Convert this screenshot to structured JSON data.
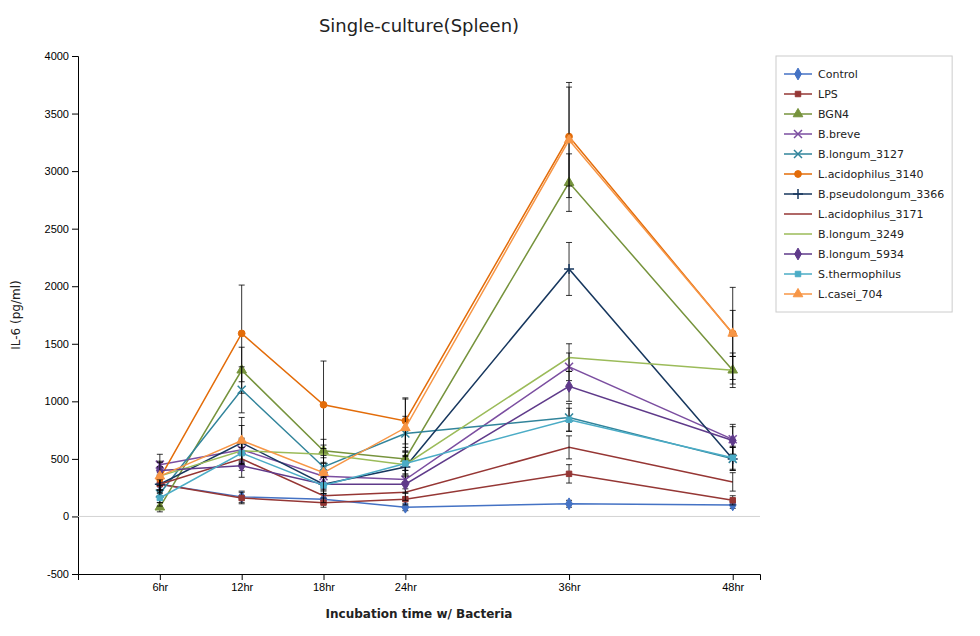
{
  "chart_data": {
    "type": "line",
    "title": "Single-culture(Spleen)",
    "xlabel": "Incubation time w/ Bacteria",
    "ylabel": "IL-6 (pg/ml)",
    "x": [
      6,
      12,
      18,
      24,
      36,
      48
    ],
    "xlim": [
      0,
      50
    ],
    "xticks": [
      {
        "value": 6,
        "label": "6hr"
      },
      {
        "value": 12,
        "label": "12hr"
      },
      {
        "value": 18,
        "label": "18hr"
      },
      {
        "value": 24,
        "label": "24hr"
      },
      {
        "value": 36,
        "label": "36hr"
      },
      {
        "value": 48,
        "label": "48hr"
      }
    ],
    "ylim": [
      -500,
      4000
    ],
    "yticks": [
      -500,
      0,
      500,
      1000,
      1500,
      2000,
      2500,
      3000,
      3500,
      4000
    ],
    "grid": false,
    "legend": "right",
    "series": [
      {
        "name": "Control",
        "color": "#4472C4",
        "marker": "diamond",
        "values": [
          280,
          170,
          150,
          80,
          110,
          100
        ],
        "yerr": [
          80,
          50,
          40,
          30,
          30,
          30
        ]
      },
      {
        "name": "LPS",
        "color": "#953735",
        "marker": "square",
        "values": [
          280,
          160,
          120,
          150,
          370,
          140
        ],
        "yerr": [
          60,
          50,
          40,
          50,
          80,
          40
        ]
      },
      {
        "name": "BGN4",
        "color": "#76933C",
        "marker": "triangle",
        "values": [
          80,
          1270,
          570,
          500,
          2900,
          1270
        ],
        "yerr": [
          40,
          200,
          100,
          100,
          250,
          150
        ]
      },
      {
        "name": "B.breve",
        "color": "#7B4EA0",
        "marker": "x",
        "values": [
          450,
          580,
          350,
          320,
          1300,
          670
        ],
        "yerr": [
          90,
          100,
          80,
          80,
          120,
          130
        ]
      },
      {
        "name": "B.longum_3127",
        "color": "#31849B",
        "marker": "x",
        "values": [
          200,
          1100,
          430,
          720,
          860,
          500
        ],
        "yerr": [
          80,
          200,
          80,
          150,
          120,
          100
        ]
      },
      {
        "name": "L.acidophilus_3140",
        "color": "#E36C09",
        "marker": "circle",
        "values": [
          330,
          1590,
          970,
          830,
          3300,
          1590
        ],
        "yerr": [
          100,
          420,
          380,
          200,
          430,
          200
        ]
      },
      {
        "name": "B.pseudolongum_3366",
        "color": "#17375E",
        "marker": "plus",
        "values": [
          280,
          640,
          280,
          430,
          2150,
          500
        ],
        "yerr": [
          100,
          150,
          80,
          130,
          230,
          100
        ]
      },
      {
        "name": "L.acidophilus_3171",
        "color": "#963634",
        "marker": "none",
        "values": [
          280,
          500,
          180,
          210,
          600,
          300
        ],
        "yerr": [
          70,
          100,
          60,
          70,
          100,
          80
        ]
      },
      {
        "name": "B.longum_3249",
        "color": "#9BBB59",
        "marker": "none",
        "values": [
          350,
          570,
          540,
          450,
          1380,
          1270
        ],
        "yerr": [
          80,
          100,
          80,
          80,
          120,
          120
        ]
      },
      {
        "name": "B.longum_5934",
        "color": "#5F3A8A",
        "marker": "diamond",
        "values": [
          400,
          440,
          280,
          280,
          1130,
          660
        ],
        "yerr": [
          80,
          100,
          60,
          70,
          130,
          120
        ]
      },
      {
        "name": "S.thermophilus",
        "color": "#4BACC6",
        "marker": "square",
        "values": [
          160,
          550,
          270,
          460,
          840,
          510
        ],
        "yerr": [
          70,
          100,
          70,
          100,
          100,
          100
        ]
      },
      {
        "name": "L.casei_704",
        "color": "#F79646",
        "marker": "triangle",
        "values": [
          350,
          660,
          380,
          770,
          3270,
          1590
        ],
        "yerr": [
          120,
          200,
          150,
          250,
          500,
          400
        ]
      }
    ]
  }
}
